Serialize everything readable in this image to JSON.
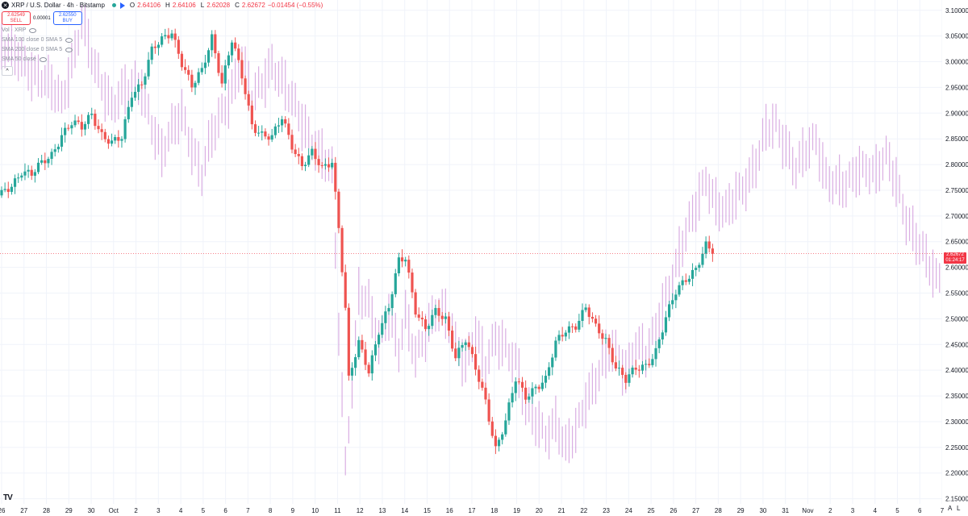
{
  "header": {
    "symbol": "XRP / U.S. Dollar · 4h · Bitstamp",
    "o_label": "O",
    "o": "2.64106",
    "h_label": "H",
    "h": "2.64106",
    "l_label": "L",
    "l": "2.62028",
    "c_label": "C",
    "c": "2.62672",
    "change": "−0.01454 (−0.55%)"
  },
  "trade": {
    "sell_price": "2.62549",
    "sell_label": "SELL",
    "spread": "0.00001",
    "buy_price": "2.62550",
    "buy_label": "BUY"
  },
  "indicators": [
    {
      "label": "Vol · XRP"
    },
    {
      "label": "SMA 100 close 0 SMA 5"
    },
    {
      "label": "SMA 200 close 0 SMA 5"
    },
    {
      "label": "SMA 50 close"
    }
  ],
  "price_tag": {
    "price": "2.62672",
    "countdown": "01:24:17"
  },
  "corner": {
    "auto": "A",
    "log": "L"
  },
  "colors": {
    "up": "#26a69a",
    "down": "#ef5350",
    "volume": "#ce93d8",
    "last_line": "#f23645"
  },
  "chart_data": {
    "type": "candlestick",
    "ylim": [
      2.14,
      3.12
    ],
    "y_ticks": [
      2.15,
      2.2,
      2.25,
      2.3,
      2.35,
      2.4,
      2.45,
      2.5,
      2.55,
      2.6,
      2.65,
      2.7,
      2.75,
      2.8,
      2.85,
      2.9,
      2.95,
      3.0,
      3.05,
      3.1
    ],
    "x_tick_labels": [
      "26",
      "27",
      "28",
      "29",
      "30",
      "Oct",
      "2",
      "3",
      "4",
      "5",
      "6",
      "7",
      "8",
      "9",
      "10",
      "11",
      "12",
      "13",
      "14",
      "15",
      "16",
      "17",
      "18",
      "19",
      "20",
      "21",
      "22",
      "23",
      "24",
      "25",
      "26",
      "27",
      "28",
      "29",
      "30",
      "31",
      "Nov",
      "2",
      "3",
      "4",
      "5",
      "6",
      "7"
    ],
    "last_price": 2.62672,
    "price_anchors": [
      [
        0,
        2.74
      ],
      [
        3,
        2.76
      ],
      [
        6,
        2.79
      ],
      [
        9,
        2.78
      ],
      [
        12,
        2.8
      ],
      [
        15,
        2.82
      ],
      [
        18,
        2.86
      ],
      [
        21,
        2.88
      ],
      [
        24,
        2.87
      ],
      [
        27,
        2.9
      ],
      [
        30,
        2.86
      ],
      [
        33,
        2.84
      ],
      [
        36,
        2.85
      ],
      [
        39,
        2.94
      ],
      [
        42,
        2.96
      ],
      [
        45,
        3.02
      ],
      [
        48,
        3.04
      ],
      [
        51,
        3.06
      ],
      [
        54,
        3.0
      ],
      [
        57,
        2.95
      ],
      [
        60,
        2.98
      ],
      [
        63,
        3.05
      ],
      [
        66,
        2.96
      ],
      [
        69,
        3.04
      ],
      [
        72,
        2.97
      ],
      [
        75,
        2.88
      ],
      [
        78,
        2.86
      ],
      [
        81,
        2.85
      ],
      [
        84,
        2.89
      ],
      [
        87,
        2.84
      ],
      [
        90,
        2.8
      ],
      [
        93,
        2.82
      ],
      [
        96,
        2.79
      ],
      [
        99,
        2.81
      ],
      [
        101,
        2.68
      ],
      [
        103,
        2.52
      ],
      [
        104,
        2.38
      ],
      [
        107,
        2.45
      ],
      [
        110,
        2.4
      ],
      [
        113,
        2.48
      ],
      [
        116,
        2.52
      ],
      [
        119,
        2.61
      ],
      [
        121,
        2.62
      ],
      [
        124,
        2.52
      ],
      [
        127,
        2.48
      ],
      [
        130,
        2.51
      ],
      [
        133,
        2.5
      ],
      [
        136,
        2.43
      ],
      [
        139,
        2.46
      ],
      [
        142,
        2.4
      ],
      [
        145,
        2.34
      ],
      [
        148,
        2.25
      ],
      [
        151,
        2.3
      ],
      [
        154,
        2.38
      ],
      [
        157,
        2.35
      ],
      [
        160,
        2.37
      ],
      [
        163,
        2.38
      ],
      [
        166,
        2.45
      ],
      [
        169,
        2.48
      ],
      [
        172,
        2.49
      ],
      [
        175,
        2.52
      ],
      [
        178,
        2.48
      ],
      [
        181,
        2.46
      ],
      [
        184,
        2.41
      ],
      [
        187,
        2.38
      ],
      [
        190,
        2.4
      ],
      [
        193,
        2.41
      ],
      [
        196,
        2.44
      ],
      [
        199,
        2.5
      ],
      [
        202,
        2.55
      ],
      [
        205,
        2.58
      ],
      [
        208,
        2.6
      ],
      [
        211,
        2.64
      ],
      [
        213,
        2.626
      ]
    ],
    "volume_anchors": [
      [
        0,
        3.03
      ],
      [
        6,
        3.0
      ],
      [
        12,
        2.97
      ],
      [
        18,
        2.92
      ],
      [
        24,
        3.08
      ],
      [
        28,
        2.98
      ],
      [
        33,
        2.92
      ],
      [
        36,
        2.94
      ],
      [
        42,
        2.95
      ],
      [
        48,
        2.82
      ],
      [
        54,
        2.9
      ],
      [
        60,
        2.78
      ],
      [
        63,
        2.85
      ],
      [
        69,
        2.95
      ],
      [
        72,
        3.0
      ],
      [
        75,
        2.92
      ],
      [
        81,
        3.0
      ],
      [
        87,
        2.92
      ],
      [
        93,
        2.85
      ],
      [
        99,
        2.78
      ],
      [
        101,
        2.48
      ],
      [
        103,
        2.22
      ],
      [
        104,
        2.3
      ],
      [
        107,
        2.55
      ],
      [
        110,
        2.52
      ],
      [
        113,
        2.45
      ],
      [
        116,
        2.52
      ],
      [
        119,
        2.44
      ],
      [
        121,
        2.5
      ],
      [
        124,
        2.42
      ],
      [
        127,
        2.48
      ],
      [
        130,
        2.52
      ],
      [
        133,
        2.5
      ],
      [
        136,
        2.45
      ],
      [
        139,
        2.42
      ],
      [
        142,
        2.48
      ],
      [
        145,
        2.4
      ],
      [
        148,
        2.46
      ],
      [
        151,
        2.45
      ],
      [
        154,
        2.42
      ],
      [
        157,
        2.32
      ],
      [
        160,
        2.3
      ],
      [
        163,
        2.28
      ],
      [
        166,
        2.3
      ],
      [
        169,
        2.24
      ],
      [
        172,
        2.28
      ],
      [
        175,
        2.35
      ],
      [
        178,
        2.38
      ],
      [
        181,
        2.42
      ],
      [
        184,
        2.44
      ],
      [
        187,
        2.4
      ],
      [
        190,
        2.45
      ],
      [
        193,
        2.42
      ],
      [
        196,
        2.48
      ],
      [
        199,
        2.55
      ],
      [
        202,
        2.6
      ],
      [
        205,
        2.66
      ],
      [
        208,
        2.72
      ],
      [
        211,
        2.78
      ],
      [
        214,
        2.72
      ],
      [
        217,
        2.7
      ],
      [
        220,
        2.74
      ],
      [
        223,
        2.77
      ],
      [
        226,
        2.8
      ],
      [
        229,
        2.86
      ],
      [
        232,
        2.88
      ],
      [
        235,
        2.84
      ],
      [
        238,
        2.79
      ],
      [
        241,
        2.82
      ],
      [
        244,
        2.85
      ],
      [
        247,
        2.78
      ],
      [
        250,
        2.76
      ],
      [
        253,
        2.75
      ],
      [
        256,
        2.79
      ],
      [
        259,
        2.8
      ],
      [
        262,
        2.78
      ],
      [
        265,
        2.81
      ],
      [
        268,
        2.77
      ],
      [
        271,
        2.7
      ],
      [
        274,
        2.65
      ],
      [
        277,
        2.61
      ],
      [
        280,
        2.58
      ],
      [
        283,
        2.6
      ],
      [
        286,
        2.66
      ],
      [
        289,
        2.7
      ]
    ]
  }
}
